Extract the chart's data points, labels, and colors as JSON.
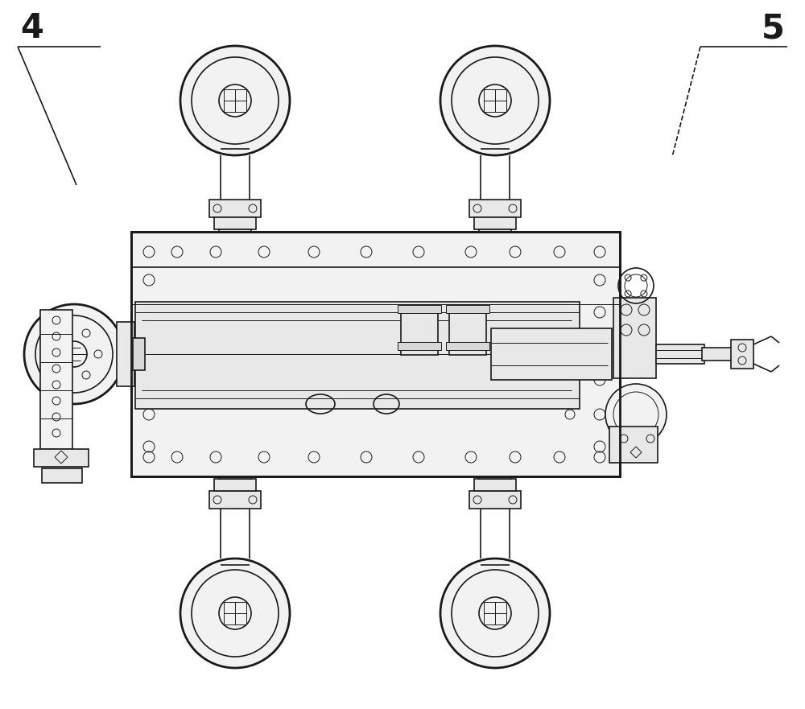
{
  "bg_color": "#ffffff",
  "line_color": "#1a1a1a",
  "fill_light": "#f2f2f2",
  "fill_mid": "#e8e8e8",
  "fill_dark": "#d8d8d8",
  "lw_thick": 2.0,
  "lw_med": 1.2,
  "lw_thin": 0.7,
  "label_4": "4",
  "label_5": "5",
  "label_fontsize": 30,
  "fig_width": 10.0,
  "fig_height": 8.81
}
